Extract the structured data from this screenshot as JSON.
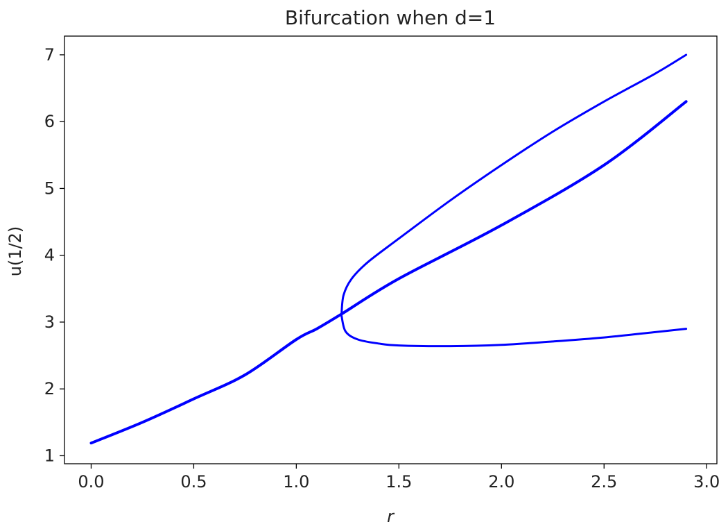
{
  "chart_data": {
    "type": "line",
    "title": "Bifurcation when d=1",
    "xlabel": "r",
    "ylabel": "u(1/2)",
    "xlim": [
      -0.13,
      3.05
    ],
    "ylim": [
      0.88,
      7.28
    ],
    "grid": false,
    "x_ticks": [
      "0.0",
      "0.5",
      "1.0",
      "1.5",
      "2.0",
      "2.5",
      "3.0"
    ],
    "y_ticks": [
      "1",
      "2",
      "3",
      "4",
      "5",
      "6",
      "7"
    ],
    "series": [
      {
        "color": "#0000ff",
        "points": [
          [
            0.0,
            1.19
          ],
          [
            0.25,
            1.5
          ],
          [
            0.5,
            1.85
          ],
          [
            0.75,
            2.21
          ],
          [
            1.0,
            2.74
          ],
          [
            1.1,
            2.9
          ],
          [
            1.22,
            3.12
          ],
          [
            1.5,
            3.65
          ],
          [
            2.0,
            4.45
          ],
          [
            2.5,
            5.35
          ],
          [
            2.9,
            6.3
          ]
        ]
      },
      {
        "color": "#0000ff",
        "points": [
          [
            1.22,
            3.1
          ],
          [
            1.23,
            3.4
          ],
          [
            1.27,
            3.65
          ],
          [
            1.35,
            3.9
          ],
          [
            1.5,
            4.25
          ],
          [
            1.75,
            4.82
          ],
          [
            2.0,
            5.35
          ],
          [
            2.25,
            5.85
          ],
          [
            2.5,
            6.3
          ],
          [
            2.75,
            6.72
          ],
          [
            2.9,
            7.0
          ]
        ]
      },
      {
        "color": "#0000ff",
        "points": [
          [
            1.22,
            3.1
          ],
          [
            1.24,
            2.86
          ],
          [
            1.3,
            2.74
          ],
          [
            1.4,
            2.68
          ],
          [
            1.5,
            2.65
          ],
          [
            1.75,
            2.64
          ],
          [
            2.0,
            2.66
          ],
          [
            2.25,
            2.71
          ],
          [
            2.5,
            2.77
          ],
          [
            2.75,
            2.85
          ],
          [
            2.9,
            2.9
          ]
        ]
      }
    ]
  }
}
